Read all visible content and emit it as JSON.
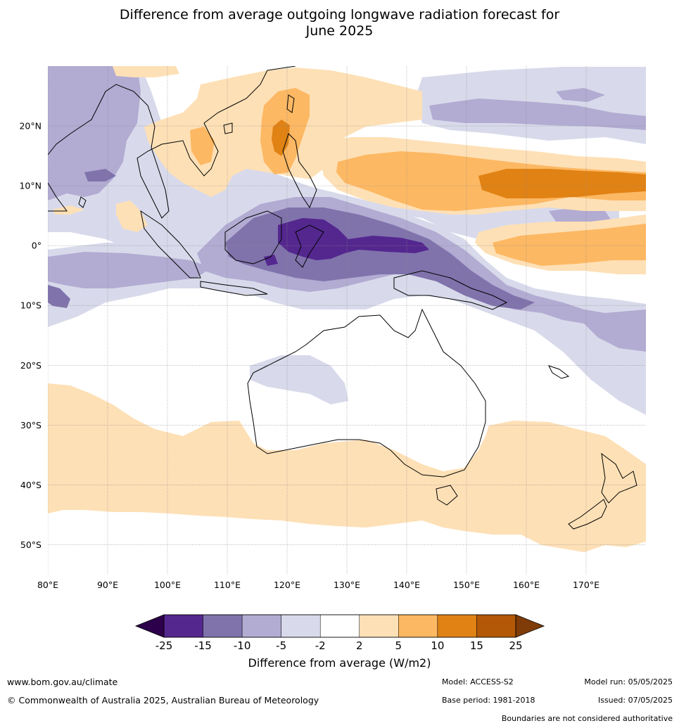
{
  "header": {
    "title_line1": "Difference from average outgoing longwave radiation forecast for",
    "title_line2": "June 2025"
  },
  "map": {
    "lon_labels": [
      "80°E",
      "90°E",
      "100°E",
      "110°E",
      "120°E",
      "130°E",
      "140°E",
      "150°E",
      "160°E",
      "170°E"
    ],
    "lon_values": [
      80,
      90,
      100,
      110,
      120,
      130,
      140,
      150,
      160,
      170
    ],
    "lat_labels": [
      "20°N",
      "10°N",
      "0°",
      "10°S",
      "20°S",
      "30°S",
      "40°S",
      "50°S"
    ],
    "lat_values": [
      20,
      10,
      0,
      -10,
      -20,
      -30,
      -40,
      -50
    ],
    "lon_range": [
      80,
      180
    ],
    "lat_range": [
      -55,
      30
    ]
  },
  "colorbar": {
    "ticks": [
      "-25",
      "-15",
      "-10",
      "-5",
      "-2",
      "2",
      "5",
      "10",
      "15",
      "25"
    ],
    "colors": [
      "#54278f",
      "#8073ac",
      "#b2abd2",
      "#d8daeb",
      "#ffffff",
      "#fee0b6",
      "#fdb863",
      "#e08214",
      "#b35806"
    ],
    "under_color": "#2d004b",
    "over_color": "#7f3b08",
    "label": "Difference from average (W/m2)"
  },
  "footer": {
    "website": "www.bom.gov.au/climate",
    "copyright": "© Commonwealth of Australia 2025, Australian Bureau of Meteorology",
    "model": "Model: ACCESS-S2",
    "base_period": "Base period: 1981-2018",
    "model_run": "Model run: 05/05/2025",
    "issued": "Issued: 07/05/2025",
    "disclaimer": "Boundaries are not considered authoritative"
  }
}
